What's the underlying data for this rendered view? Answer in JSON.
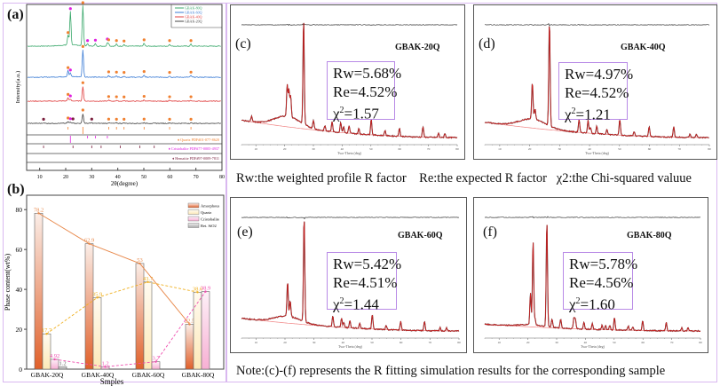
{
  "chart_data": [
    {
      "id": "a",
      "type": "line",
      "panel_label": "(a)",
      "title": "",
      "xlabel": "2θ(degree)",
      "ylabel": "Intensity(a.u.)",
      "xlim": [
        5,
        80
      ],
      "xticks": [
        10,
        20,
        30,
        40,
        50,
        60,
        70,
        80
      ],
      "legend": {
        "position": "top-right",
        "entries": [
          {
            "name": "GBAK-80Q",
            "color": "#3aa86b"
          },
          {
            "name": "GBAK-60Q",
            "color": "#3a7bd5"
          },
          {
            "name": "GBAK-40Q",
            "color": "#e04040"
          },
          {
            "name": "GBAK-20Q",
            "color": "#444444"
          }
        ]
      },
      "series": [
        {
          "name": "GBAK-80Q",
          "color": "#3aa86b",
          "peaks": [
            [
              20.9,
              0.25
            ],
            [
              21.8,
              0.85
            ],
            [
              26.6,
              1.0
            ],
            [
              28.4,
              0.05
            ],
            [
              31.4,
              0.06
            ],
            [
              36.0,
              0.08
            ],
            [
              36.5,
              0.06
            ],
            [
              39.5,
              0.05
            ],
            [
              42.4,
              0.04
            ],
            [
              50.1,
              0.07
            ],
            [
              59.9,
              0.05
            ],
            [
              68.1,
              0.05
            ]
          ]
        },
        {
          "name": "GBAK-60Q",
          "color": "#3a7bd5",
          "peaks": [
            [
              20.9,
              0.2
            ],
            [
              21.8,
              0.12
            ],
            [
              26.6,
              0.9
            ],
            [
              36.5,
              0.06
            ],
            [
              39.5,
              0.05
            ],
            [
              42.4,
              0.04
            ],
            [
              50.1,
              0.07
            ],
            [
              59.9,
              0.04
            ],
            [
              68.1,
              0.05
            ]
          ]
        },
        {
          "name": "GBAK-40Q",
          "color": "#e04040",
          "peaks": [
            [
              20.9,
              0.15
            ],
            [
              21.8,
              0.08
            ],
            [
              26.6,
              0.7
            ],
            [
              36.5,
              0.05
            ],
            [
              39.5,
              0.04
            ],
            [
              42.4,
              0.03
            ],
            [
              50.1,
              0.06
            ],
            [
              59.9,
              0.04
            ],
            [
              68.1,
              0.04
            ]
          ]
        },
        {
          "name": "GBAK-20Q",
          "color": "#444444",
          "peaks": [
            [
              11.5,
              0.03
            ],
            [
              20.9,
              0.1
            ],
            [
              21.8,
              0.06
            ],
            [
              22.8,
              0.05
            ],
            [
              26.6,
              0.55
            ],
            [
              30.0,
              0.04
            ],
            [
              36.5,
              0.04
            ],
            [
              39.5,
              0.03
            ],
            [
              42.4,
              0.03
            ],
            [
              50.1,
              0.04
            ],
            [
              59.9,
              0.03
            ],
            [
              68.1,
              0.03
            ]
          ]
        }
      ],
      "markers": {
        "quartz": {
          "symbol": "♦",
          "color": "#f08030"
        },
        "cristobalite": {
          "symbol": "♦",
          "color": "#e020e0"
        },
        "hematite": {
          "symbol": "♦",
          "color": "#7a1f3d"
        }
      },
      "references": [
        {
          "label": "Quartz PDF#01-077-8620",
          "color": "#f08030",
          "sticks": [
            20.9,
            26.6,
            36.5,
            39.5,
            42.4,
            50.1,
            59.9,
            68.1
          ]
        },
        {
          "label": "Cristobalite PDF#77-0005-4937",
          "color": "#e020e0",
          "sticks": [
            21.8,
            28.4,
            31.4,
            36.0
          ]
        },
        {
          "label": "Hematite PDF#97-0009-7811",
          "color": "#7a1f3d",
          "sticks": [
            11.5,
            22.8,
            30.0,
            33.6,
            41.0,
            48.5,
            54.0
          ]
        }
      ]
    },
    {
      "id": "b",
      "type": "bar",
      "panel_label": "(b)",
      "title": "",
      "xlabel": "Smples",
      "ylabel": "Phase content(wt%)",
      "ylim": [
        0,
        85
      ],
      "yticks": [
        0,
        20,
        40,
        60,
        80
      ],
      "categories": [
        "GBAK-20Q",
        "GBAK-40Q",
        "GBAK-60Q",
        "GBAK-80Q"
      ],
      "legend": {
        "position": "top-right"
      },
      "series": [
        {
          "name": "Amorphous",
          "color": "#e06a3c",
          "line_color": "#e8884a",
          "line_style": "solid",
          "values": [
            78.2,
            62.9,
            53,
            22.5
          ],
          "labels": [
            "78.2",
            "62.9",
            "53",
            "22.5"
          ]
        },
        {
          "name": "Quartz",
          "color": "#fbe6b0",
          "line_color": "#f0b020",
          "line_style": "dashed",
          "values": [
            17.7,
            35.9,
            43.7,
            38.6
          ],
          "labels": [
            "17.7",
            "35.9",
            "43.7",
            "38.6"
          ]
        },
        {
          "name": "Cristobalite",
          "color": "#f7b5d6",
          "line_color": "#f050b0",
          "line_style": "dashed",
          "values": [
            4.92,
            1.2,
            3.7,
            38.9
          ],
          "labels": [
            "4.92",
            "1.2",
            "3.7",
            "38.9"
          ]
        },
        {
          "name": "Ret. SiO2",
          "color": "#cccccc",
          "line_color": "#666666",
          "line_style": "none",
          "values": [
            1.2,
            null,
            null,
            null
          ],
          "labels": [
            "1.2",
            "",
            "",
            ""
          ]
        }
      ]
    },
    {
      "id": "c",
      "type": "line",
      "panel_label": "(c)",
      "sample": "GBAK-20Q",
      "xlabel": "Two-Theta (deg)",
      "xlim": [
        5,
        80
      ],
      "stats": {
        "rw": "Rw=5.68%",
        "re": "Re=4.52%",
        "chi2_prefix": "χ",
        "chi2_sup": "2",
        "chi2_value": "=1.57"
      },
      "peaks": [
        [
          8.5,
          0.05
        ],
        [
          20.9,
          0.3
        ],
        [
          21.5,
          0.25
        ],
        [
          22.1,
          0.2
        ],
        [
          26.6,
          1.0
        ],
        [
          30.0,
          0.08
        ],
        [
          34.0,
          0.05
        ],
        [
          36.5,
          0.1
        ],
        [
          39.5,
          0.1
        ],
        [
          40.5,
          0.06
        ],
        [
          42.4,
          0.07
        ],
        [
          45.8,
          0.05
        ],
        [
          50.1,
          0.15
        ],
        [
          54.9,
          0.05
        ],
        [
          59.9,
          0.08
        ],
        [
          68.1,
          0.1
        ],
        [
          73.5,
          0.04
        ],
        [
          75.7,
          0.04
        ]
      ],
      "hump": 0.2
    },
    {
      "id": "d",
      "type": "line",
      "panel_label": "(d)",
      "sample": "GBAK-40Q",
      "xlabel": "Two-Theta (deg)",
      "xlim": [
        5,
        80
      ],
      "stats": {
        "rw": "Rw=4.97%",
        "re": "Re=4.52%",
        "chi2_prefix": "χ",
        "chi2_sup": "2",
        "chi2_value": "=1.21"
      },
      "peaks": [
        [
          20.9,
          0.35
        ],
        [
          21.8,
          0.1
        ],
        [
          26.6,
          1.0
        ],
        [
          36.5,
          0.12
        ],
        [
          39.5,
          0.12
        ],
        [
          40.3,
          0.06
        ],
        [
          42.4,
          0.07
        ],
        [
          45.8,
          0.05
        ],
        [
          50.1,
          0.15
        ],
        [
          54.9,
          0.04
        ],
        [
          59.9,
          0.09
        ],
        [
          68.1,
          0.1
        ],
        [
          73.5,
          0.03
        ],
        [
          75.7,
          0.03
        ]
      ],
      "hump": 0.17
    },
    {
      "id": "e",
      "type": "line",
      "panel_label": "(e)",
      "sample": "GBAK-60Q",
      "xlabel": "Two-Theta (deg)",
      "xlim": [
        5,
        80
      ],
      "stats": {
        "rw": "Rw=5.42%",
        "re": "Re=4.51%",
        "chi2_prefix": "χ",
        "chi2_sup": "2",
        "chi2_value": "=1.44"
      },
      "peaks": [
        [
          20.9,
          0.33
        ],
        [
          21.8,
          0.15
        ],
        [
          26.6,
          1.0
        ],
        [
          36.5,
          0.1
        ],
        [
          39.5,
          0.09
        ],
        [
          40.3,
          0.05
        ],
        [
          42.4,
          0.07
        ],
        [
          45.8,
          0.05
        ],
        [
          50.1,
          0.14
        ],
        [
          54.9,
          0.04
        ],
        [
          59.9,
          0.08
        ],
        [
          68.1,
          0.09
        ],
        [
          73.5,
          0.03
        ],
        [
          75.7,
          0.03
        ]
      ],
      "hump": 0.13
    },
    {
      "id": "f",
      "type": "line",
      "panel_label": "(f)",
      "sample": "GBAK-80Q",
      "xlabel": "Two-Theta (deg)",
      "xlim": [
        5,
        80
      ],
      "stats": {
        "rw": "Rw=5.78%",
        "re": "Re=4.56%",
        "chi2_prefix": "χ",
        "chi2_sup": "2",
        "chi2_value": "=1.60"
      },
      "peaks": [
        [
          20.9,
          0.3
        ],
        [
          21.8,
          0.8
        ],
        [
          22.5,
          0.06
        ],
        [
          26.6,
          1.0
        ],
        [
          28.4,
          0.08
        ],
        [
          31.4,
          0.09
        ],
        [
          36.0,
          0.1
        ],
        [
          36.5,
          0.09
        ],
        [
          39.5,
          0.07
        ],
        [
          42.4,
          0.06
        ],
        [
          45.8,
          0.04
        ],
        [
          47.0,
          0.04
        ],
        [
          48.5,
          0.04
        ],
        [
          50.1,
          0.12
        ],
        [
          54.9,
          0.04
        ],
        [
          56.5,
          0.03
        ],
        [
          59.9,
          0.09
        ],
        [
          68.1,
          0.08
        ],
        [
          73.5,
          0.03
        ],
        [
          75.7,
          0.03
        ]
      ],
      "hump": 0.04
    }
  ],
  "captions": {
    "rw_def": "Rw:the weighted profile R factor",
    "re_def": "Re:the expected R factor",
    "chi_def": "χ2:the Chi-squared valuue",
    "note": "Note:(c)-(f) represents the R fitting simulation results for the corresponding sample"
  }
}
